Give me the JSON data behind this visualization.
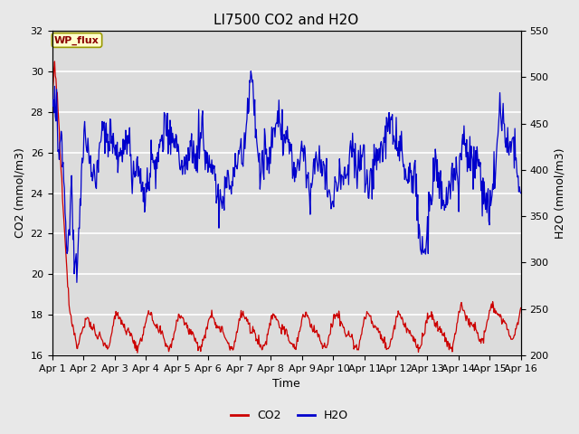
{
  "title": "LI7500 CO2 and H2O",
  "xlabel": "Time",
  "ylabel_left": "CO2 (mmol/m3)",
  "ylabel_right": "H2O (mmol/m3)",
  "annotation": "WP_flux",
  "co2_ylim": [
    16,
    32
  ],
  "h2o_ylim": [
    200,
    550
  ],
  "co2_color": "#cc0000",
  "h2o_color": "#0000cc",
  "fig_facecolor": "#e8e8e8",
  "plot_facecolor": "#dcdcdc",
  "xtick_labels": [
    "Apr 1",
    "Apr 2",
    "Apr 3",
    "Apr 4",
    "Apr 5",
    "Apr 6",
    "Apr 7",
    "Apr 8",
    "Apr 9",
    "Apr 10",
    "Apr 11",
    "Apr 12",
    "Apr 13",
    "Apr 14",
    "Apr 15",
    "Apr 16"
  ],
  "yticks_left": [
    16,
    18,
    20,
    22,
    24,
    26,
    28,
    30,
    32
  ],
  "yticks_right": [
    200,
    250,
    300,
    350,
    400,
    450,
    500,
    550
  ],
  "legend_co2": "CO2",
  "legend_h2o": "H2O",
  "title_fontsize": 11,
  "axis_label_fontsize": 9,
  "tick_fontsize": 8
}
